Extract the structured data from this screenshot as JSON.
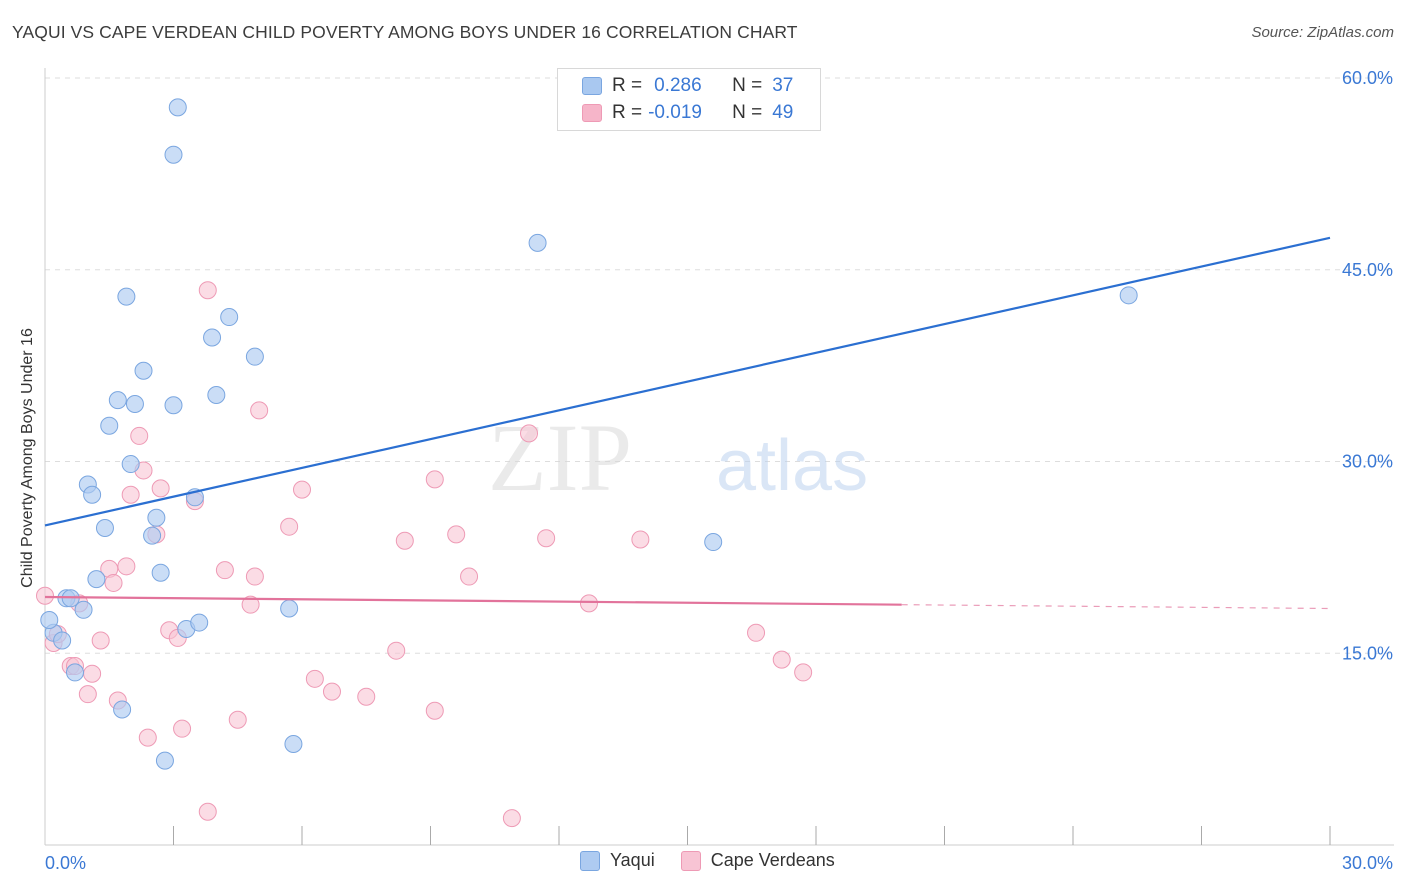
{
  "header": {
    "title": "YAQUI VS CAPE VERDEAN CHILD POVERTY AMONG BOYS UNDER 16 CORRELATION CHART",
    "source": "Source: ZipAtlas.com"
  },
  "watermark": {
    "zip": "ZIP",
    "atlas": "atlas"
  },
  "legend": {
    "rows": [
      {
        "r_label": "R =",
        "r_value": "0.286",
        "n_label": "N =",
        "n_value": "37",
        "color": "#a9c8f0"
      },
      {
        "r_label": "R =",
        "r_value": "-0.019",
        "n_label": "N =",
        "n_value": "49",
        "color": "#f6b5c9"
      }
    ]
  },
  "colors": {
    "yaqui_fill": "#aecbf1",
    "yaqui_stroke": "#7aa6e0",
    "yaqui_line": "#2b6fd1",
    "cape_fill": "#f8c4d4",
    "cape_stroke": "#ee9ab5",
    "cape_line": "#e2739b",
    "axis_text": "#3a78d4",
    "grid": "#dddddd"
  },
  "chart_data": {
    "type": "scatter",
    "title": "YAQUI VS CAPE VERDEAN CHILD POVERTY AMONG BOYS UNDER 16 CORRELATION CHART",
    "xlabel": "",
    "ylabel": "Child Poverty Among Boys Under 16",
    "xlim": [
      0,
      30
    ],
    "ylim": [
      0,
      60
    ],
    "x_tick_labels": [
      "0.0%",
      "30.0%"
    ],
    "y_ticks": [
      15,
      30,
      45,
      60
    ],
    "y_tick_labels": [
      "15.0%",
      "30.0%",
      "45.0%",
      "60.0%"
    ],
    "grid": true,
    "legend_position": "top-center",
    "series": [
      {
        "name": "Yaqui",
        "points": [
          [
            0.2,
            16.6
          ],
          [
            0.4,
            16.0
          ],
          [
            0.5,
            19.3
          ],
          [
            0.6,
            19.3
          ],
          [
            0.7,
            13.5
          ],
          [
            0.9,
            18.4
          ],
          [
            1.0,
            28.2
          ],
          [
            1.1,
            27.4
          ],
          [
            1.2,
            20.8
          ],
          [
            1.4,
            24.8
          ],
          [
            1.5,
            32.8
          ],
          [
            1.7,
            34.8
          ],
          [
            1.8,
            10.6
          ],
          [
            1.9,
            42.9
          ],
          [
            2.0,
            29.8
          ],
          [
            2.1,
            34.5
          ],
          [
            2.3,
            37.1
          ],
          [
            2.5,
            24.2
          ],
          [
            2.6,
            25.6
          ],
          [
            2.7,
            21.3
          ],
          [
            2.8,
            6.6
          ],
          [
            3.0,
            54.0
          ],
          [
            3.0,
            34.4
          ],
          [
            3.1,
            57.7
          ],
          [
            3.3,
            16.9
          ],
          [
            3.5,
            27.2
          ],
          [
            3.6,
            17.4
          ],
          [
            3.9,
            39.7
          ],
          [
            4.0,
            35.2
          ],
          [
            4.3,
            41.3
          ],
          [
            4.9,
            38.2
          ],
          [
            5.7,
            18.5
          ],
          [
            5.8,
            7.9
          ],
          [
            11.5,
            47.1
          ],
          [
            15.6,
            23.7
          ],
          [
            25.3,
            43.0
          ],
          [
            0.1,
            17.6
          ]
        ],
        "trend": {
          "x": [
            0,
            30
          ],
          "y": [
            25.0,
            47.5
          ]
        }
      },
      {
        "name": "Cape Verdeans",
        "points": [
          [
            0.0,
            19.5
          ],
          [
            0.2,
            15.8
          ],
          [
            0.3,
            16.5
          ],
          [
            0.6,
            14.0
          ],
          [
            0.7,
            14.0
          ],
          [
            0.8,
            18.9
          ],
          [
            1.0,
            11.8
          ],
          [
            1.1,
            13.4
          ],
          [
            1.3,
            16.0
          ],
          [
            1.5,
            21.6
          ],
          [
            1.6,
            20.5
          ],
          [
            1.7,
            11.3
          ],
          [
            1.9,
            21.8
          ],
          [
            2.0,
            27.4
          ],
          [
            2.2,
            32.0
          ],
          [
            2.3,
            29.3
          ],
          [
            2.4,
            8.4
          ],
          [
            2.6,
            24.3
          ],
          [
            2.7,
            27.9
          ],
          [
            2.9,
            16.8
          ],
          [
            3.1,
            16.2
          ],
          [
            3.2,
            9.1
          ],
          [
            3.5,
            26.9
          ],
          [
            3.8,
            2.6
          ],
          [
            3.8,
            43.4
          ],
          [
            4.2,
            21.5
          ],
          [
            4.5,
            9.8
          ],
          [
            4.8,
            18.8
          ],
          [
            4.9,
            21.0
          ],
          [
            5.0,
            34.0
          ],
          [
            5.7,
            24.9
          ],
          [
            6.0,
            27.8
          ],
          [
            6.3,
            13.0
          ],
          [
            6.7,
            12.0
          ],
          [
            7.5,
            11.6
          ],
          [
            8.2,
            15.2
          ],
          [
            8.4,
            23.8
          ],
          [
            9.1,
            28.6
          ],
          [
            9.1,
            10.5
          ],
          [
            9.6,
            24.3
          ],
          [
            9.9,
            21.0
          ],
          [
            10.9,
            2.1
          ],
          [
            11.3,
            32.2
          ],
          [
            11.7,
            24.0
          ],
          [
            12.7,
            18.9
          ],
          [
            13.9,
            23.9
          ],
          [
            16.6,
            16.6
          ],
          [
            17.2,
            14.5
          ],
          [
            17.7,
            13.5
          ]
        ],
        "trend": {
          "x": [
            0,
            20
          ],
          "y": [
            19.4,
            18.8
          ]
        },
        "trend_dashed": {
          "x": [
            20,
            30
          ],
          "y": [
            18.8,
            18.5
          ]
        }
      }
    ]
  },
  "bottom_legend": [
    {
      "label": "Yaqui",
      "color": "#aecbf1"
    },
    {
      "label": "Cape Verdeans",
      "color": "#f8c4d4"
    }
  ]
}
